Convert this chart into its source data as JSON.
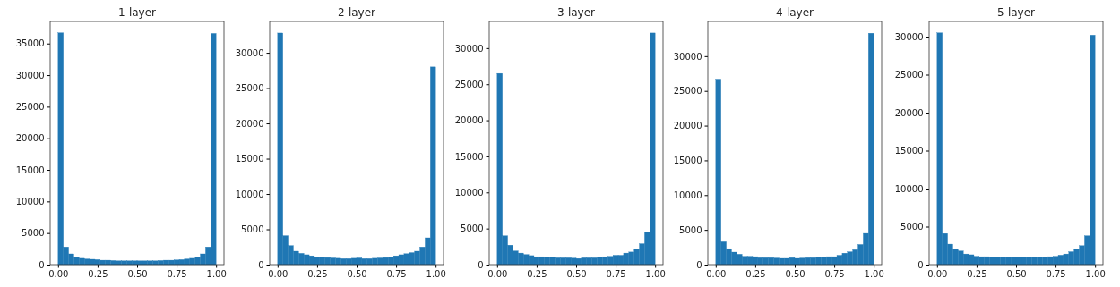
{
  "chart_data": [
    {
      "type": "histogram",
      "title": "1-layer",
      "color": "#1f77b4",
      "bins": [
        0,
        0.0333,
        0.0667,
        0.1,
        0.1333,
        0.1667,
        0.2,
        0.2333,
        0.2667,
        0.3,
        0.3333,
        0.3667,
        0.4,
        0.4333,
        0.4667,
        0.5,
        0.5333,
        0.5667,
        0.6,
        0.6333,
        0.6667,
        0.7,
        0.7333,
        0.7667,
        0.8,
        0.8333,
        0.8667,
        0.9,
        0.9333,
        0.9667,
        1
      ],
      "values": [
        36700,
        2800,
        1700,
        1200,
        1000,
        900,
        850,
        800,
        700,
        700,
        650,
        600,
        600,
        600,
        600,
        600,
        600,
        600,
        600,
        650,
        700,
        700,
        750,
        800,
        900,
        1000,
        1200,
        1700,
        2800,
        36600
      ],
      "xlim": [
        -0.05,
        1.05
      ],
      "ylim": [
        0,
        38500
      ],
      "xticks": [
        {
          "value": 0,
          "label": "0.00"
        },
        {
          "value": 0.25,
          "label": "0.25"
        },
        {
          "value": 0.5,
          "label": "0.50"
        },
        {
          "value": 0.75,
          "label": "0.75"
        },
        {
          "value": 1,
          "label": "1.00"
        }
      ],
      "yticks": [
        0,
        5000,
        10000,
        15000,
        20000,
        25000,
        30000,
        35000
      ]
    },
    {
      "type": "histogram",
      "title": "2-layer",
      "color": "#1f77b4",
      "bins": [
        0,
        0.0333,
        0.0667,
        0.1,
        0.1333,
        0.1667,
        0.2,
        0.2333,
        0.2667,
        0.3,
        0.3333,
        0.3667,
        0.4,
        0.4333,
        0.4667,
        0.5,
        0.5333,
        0.5667,
        0.6,
        0.6333,
        0.6667,
        0.7,
        0.7333,
        0.7667,
        0.8,
        0.8333,
        0.8667,
        0.9,
        0.9333,
        0.9667,
        1
      ],
      "values": [
        32800,
        4100,
        2700,
        1900,
        1600,
        1400,
        1250,
        1100,
        1050,
        1000,
        950,
        900,
        850,
        850,
        900,
        950,
        850,
        850,
        900,
        950,
        1000,
        1100,
        1250,
        1400,
        1550,
        1700,
        1900,
        2500,
        3800,
        28000
      ],
      "xlim": [
        -0.05,
        1.05
      ],
      "ylim": [
        0,
        34440
      ],
      "xticks": [
        {
          "value": 0,
          "label": "0.00"
        },
        {
          "value": 0.25,
          "label": "0.25"
        },
        {
          "value": 0.5,
          "label": "0.50"
        },
        {
          "value": 0.75,
          "label": "0.75"
        },
        {
          "value": 1,
          "label": "1.00"
        }
      ],
      "yticks": [
        0,
        5000,
        10000,
        15000,
        20000,
        25000,
        30000
      ]
    },
    {
      "type": "histogram",
      "title": "3-layer",
      "color": "#1f77b4",
      "bins": [
        0,
        0.0333,
        0.0667,
        0.1,
        0.1333,
        0.1667,
        0.2,
        0.2333,
        0.2667,
        0.3,
        0.3333,
        0.3667,
        0.4,
        0.4333,
        0.4667,
        0.5,
        0.5333,
        0.5667,
        0.6,
        0.6333,
        0.6667,
        0.7,
        0.7333,
        0.7667,
        0.8,
        0.8333,
        0.8667,
        0.9,
        0.9333,
        0.9667,
        1
      ],
      "values": [
        26500,
        4000,
        2700,
        1900,
        1600,
        1400,
        1250,
        1100,
        1100,
        1000,
        1000,
        950,
        950,
        950,
        900,
        850,
        950,
        950,
        950,
        1000,
        1100,
        1150,
        1300,
        1300,
        1600,
        1750,
        2200,
        2900,
        4500,
        32100
      ],
      "xlim": [
        -0.05,
        1.05
      ],
      "ylim": [
        0,
        33700
      ],
      "xticks": [
        {
          "value": 0,
          "label": "0.00"
        },
        {
          "value": 0.25,
          "label": "0.25"
        },
        {
          "value": 0.5,
          "label": "0.50"
        },
        {
          "value": 0.75,
          "label": "0.75"
        },
        {
          "value": 1,
          "label": "1.00"
        }
      ],
      "yticks": [
        0,
        5000,
        10000,
        15000,
        20000,
        25000,
        30000
      ]
    },
    {
      "type": "histogram",
      "title": "4-layer",
      "color": "#1f77b4",
      "bins": [
        0,
        0.0333,
        0.0667,
        0.1,
        0.1333,
        0.1667,
        0.2,
        0.2333,
        0.2667,
        0.3,
        0.3333,
        0.3667,
        0.4,
        0.4333,
        0.4667,
        0.5,
        0.5333,
        0.5667,
        0.6,
        0.6333,
        0.6667,
        0.7,
        0.7333,
        0.7667,
        0.8,
        0.8333,
        0.8667,
        0.9,
        0.9333,
        0.9667,
        1
      ],
      "values": [
        26700,
        3300,
        2300,
        1800,
        1500,
        1200,
        1200,
        1150,
        1000,
        1000,
        1000,
        950,
        900,
        900,
        1000,
        900,
        950,
        1000,
        1000,
        1100,
        1050,
        1150,
        1150,
        1350,
        1650,
        1850,
        2150,
        2900,
        4500,
        33300
      ],
      "xlim": [
        -0.05,
        1.05
      ],
      "ylim": [
        0,
        35000
      ],
      "xticks": [
        {
          "value": 0,
          "label": "0.00"
        },
        {
          "value": 0.25,
          "label": "0.25"
        },
        {
          "value": 0.5,
          "label": "0.50"
        },
        {
          "value": 0.75,
          "label": "0.75"
        },
        {
          "value": 1,
          "label": "1.00"
        }
      ],
      "yticks": [
        0,
        5000,
        10000,
        15000,
        20000,
        25000,
        30000
      ]
    },
    {
      "type": "histogram",
      "title": "5-layer",
      "color": "#1f77b4",
      "bins": [
        0,
        0.0333,
        0.0667,
        0.1,
        0.1333,
        0.1667,
        0.2,
        0.2333,
        0.2667,
        0.3,
        0.3333,
        0.3667,
        0.4,
        0.4333,
        0.4667,
        0.5,
        0.5333,
        0.5667,
        0.6,
        0.6333,
        0.6667,
        0.7,
        0.7333,
        0.7667,
        0.8,
        0.8333,
        0.8667,
        0.9,
        0.9333,
        0.9667,
        1
      ],
      "values": [
        30500,
        4100,
        2700,
        2100,
        1800,
        1400,
        1300,
        1100,
        1050,
        1050,
        950,
        950,
        950,
        950,
        950,
        950,
        950,
        950,
        950,
        950,
        1000,
        1050,
        1100,
        1250,
        1400,
        1700,
        2000,
        2500,
        3800,
        30200
      ],
      "xlim": [
        -0.05,
        1.05
      ],
      "ylim": [
        0,
        32000
      ],
      "xticks": [
        {
          "value": 0,
          "label": "0.00"
        },
        {
          "value": 0.25,
          "label": "0.25"
        },
        {
          "value": 0.5,
          "label": "0.50"
        },
        {
          "value": 0.75,
          "label": "0.75"
        },
        {
          "value": 1,
          "label": "1.00"
        }
      ],
      "yticks": [
        0,
        5000,
        10000,
        15000,
        20000,
        25000,
        30000
      ]
    }
  ]
}
